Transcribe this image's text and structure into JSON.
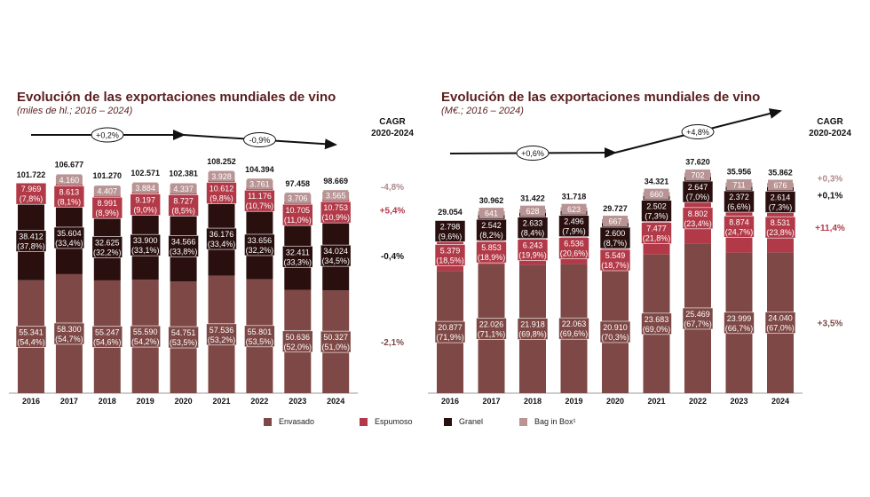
{
  "legend": [
    {
      "name": "Envasado",
      "color": "#7d4845"
    },
    {
      "name": "Espumoso",
      "color": "#b23a48"
    },
    {
      "name": "Granel",
      "color": "#2a0f0f"
    },
    {
      "name": "Bag in Box¹",
      "color": "#b89594"
    }
  ],
  "chart_data": [
    {
      "type": "bar",
      "stacked": true,
      "title": "Evolución de las exportaciones mundiales de vino",
      "subtitle": "(miles de hl.; 2016 – 2024)",
      "cagr_header": "CAGR",
      "cagr_period": "2020-2024",
      "categories": [
        "2016",
        "2017",
        "2018",
        "2019",
        "2020",
        "2021",
        "2022",
        "2023",
        "2024"
      ],
      "totals": [
        101722,
        106677,
        101270,
        102571,
        102381,
        108252,
        104394,
        97458,
        98669
      ],
      "series": [
        {
          "name": "Envasado",
          "color": "#7d4845",
          "values": [
            55341,
            58300,
            55247,
            55590,
            54751,
            57536,
            55801,
            50636,
            50327
          ],
          "pct": [
            54.4,
            54.7,
            54.6,
            54.2,
            53.5,
            53.2,
            53.5,
            52.0,
            51.0
          ],
          "cagr": "-2,1%"
        },
        {
          "name": "Granel",
          "color": "#2a0f0f",
          "values": [
            38412,
            35604,
            32625,
            33900,
            34566,
            36176,
            33656,
            32411,
            34024
          ],
          "pct": [
            37.8,
            33.4,
            32.2,
            33.1,
            33.8,
            33.4,
            32.2,
            33.3,
            34.5
          ],
          "cagr": "-0,4%"
        },
        {
          "name": "Espumoso",
          "color": "#b23a48",
          "values": [
            7969,
            8613,
            8991,
            9197,
            8727,
            10612,
            11176,
            10705,
            10753
          ],
          "pct": [
            7.8,
            8.1,
            8.9,
            9.0,
            8.5,
            9.8,
            10.7,
            11.0,
            10.9
          ],
          "cagr": "+5,4%"
        },
        {
          "name": "Bag in Box¹",
          "color": "#b89594",
          "values": [
            null,
            4160,
            4407,
            3884,
            4337,
            3928,
            3761,
            3706,
            3565
          ],
          "pct": null,
          "cagr": "-4,8%"
        }
      ],
      "trends": [
        {
          "from": "2016",
          "to": "2020",
          "label": "+0,2%"
        },
        {
          "from": "2020",
          "to": "2024",
          "label": "-0,9%"
        }
      ]
    },
    {
      "type": "bar",
      "stacked": true,
      "title": "Evolución de las exportaciones mundiales de vino",
      "subtitle": "(M€.; 2016 – 2024)",
      "cagr_header": "CAGR",
      "cagr_period": "2020-2024",
      "categories": [
        "2016",
        "2017",
        "2018",
        "2019",
        "2020",
        "2021",
        "2022",
        "2023",
        "2024"
      ],
      "totals": [
        29054,
        30962,
        31422,
        31718,
        29727,
        34321,
        37620,
        35956,
        35862
      ],
      "series": [
        {
          "name": "Envasado",
          "color": "#7d4845",
          "values": [
            20877,
            22026,
            21918,
            22063,
            20910,
            23683,
            25469,
            23999,
            24040
          ],
          "pct": [
            71.9,
            71.1,
            69.8,
            69.6,
            70.3,
            69.0,
            67.7,
            66.7,
            67.0
          ],
          "cagr": "+3,5%"
        },
        {
          "name": "Espumoso",
          "color": "#b23a48",
          "values": [
            5379,
            5853,
            6243,
            6536,
            5549,
            7477,
            8802,
            8874,
            8531
          ],
          "pct": [
            18.5,
            18.9,
            19.9,
            20.6,
            18.7,
            21.8,
            23.4,
            24.7,
            23.8
          ],
          "cagr": "+11,4%"
        },
        {
          "name": "Granel",
          "color": "#2a0f0f",
          "values": [
            2798,
            2542,
            2633,
            2496,
            2600,
            2502,
            2647,
            2372,
            2614
          ],
          "pct": [
            9.6,
            8.2,
            8.4,
            7.9,
            8.7,
            7.3,
            7.0,
            6.6,
            7.3
          ],
          "cagr": "+0,1%"
        },
        {
          "name": "Bag in Box¹",
          "color": "#b89594",
          "values": [
            null,
            641,
            628,
            623,
            667,
            660,
            702,
            711,
            676
          ],
          "pct": null,
          "cagr": "+0,3%"
        }
      ],
      "trends": [
        {
          "from": "2016",
          "to": "2020",
          "label": "+0,6%"
        },
        {
          "from": "2020",
          "to": "2024",
          "label": "+4,8%"
        }
      ]
    }
  ]
}
